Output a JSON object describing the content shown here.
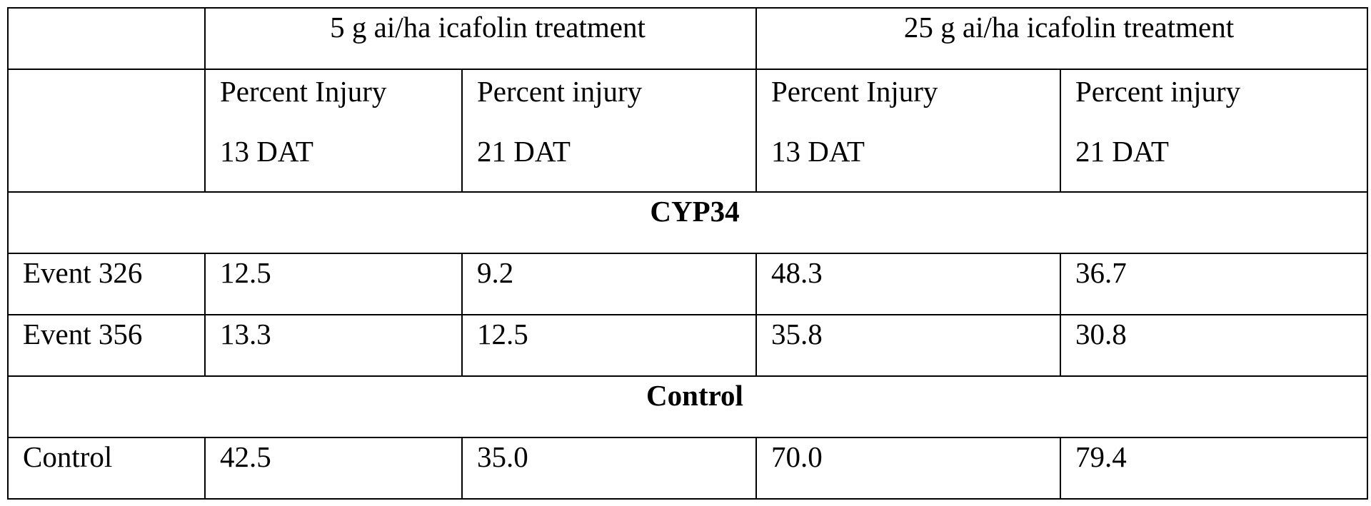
{
  "table": {
    "group_headers": [
      "",
      "5 g ai/ha icafolin treatment",
      "25 g ai/ha icafolin treatment"
    ],
    "sub_headers": [
      {
        "line1": "",
        "line2": ""
      },
      {
        "line1": "Percent Injury",
        "line2": "13 DAT"
      },
      {
        "line1": "Percent injury",
        "line2": "21 DAT"
      },
      {
        "line1": "Percent Injury",
        "line2": "13 DAT"
      },
      {
        "line1": "Percent injury",
        "line2": "21 DAT"
      }
    ],
    "sections": [
      {
        "title": "CYP34",
        "rows": [
          {
            "label": "Event 326",
            "values": [
              "12.5",
              "9.2",
              "48.3",
              "36.7"
            ]
          },
          {
            "label": "Event 356",
            "values": [
              "13.3",
              "12.5",
              "35.8",
              "30.8"
            ]
          }
        ]
      },
      {
        "title": "Control",
        "rows": [
          {
            "label": "Control",
            "values": [
              "42.5",
              "35.0",
              "70.0",
              "79.4"
            ]
          }
        ]
      }
    ]
  }
}
